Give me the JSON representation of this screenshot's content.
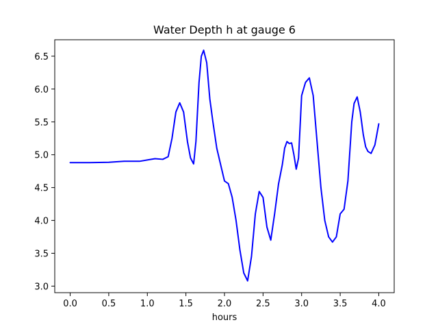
{
  "chart_data": {
    "type": "line",
    "title": "Water Depth h at gauge 6",
    "xlabel": "hours",
    "ylabel": "",
    "xlim": [
      -0.2,
      4.2
    ],
    "ylim": [
      2.9,
      6.75
    ],
    "xticks": [
      0.0,
      0.5,
      1.0,
      1.5,
      2.0,
      2.5,
      3.0,
      3.5,
      4.0
    ],
    "xtick_labels": [
      "0.0",
      "0.5",
      "1.0",
      "1.5",
      "2.0",
      "2.5",
      "3.0",
      "3.5",
      "4.0"
    ],
    "yticks": [
      3.0,
      3.5,
      4.0,
      4.5,
      5.0,
      5.5,
      6.0,
      6.5
    ],
    "ytick_labels": [
      "3.0",
      "3.5",
      "4.0",
      "4.5",
      "5.0",
      "5.5",
      "6.0",
      "6.5"
    ],
    "grid": false,
    "legend": "none",
    "series": [
      {
        "color": "#0000ff",
        "x": [
          0.0,
          0.25,
          0.5,
          0.7,
          0.9,
          1.0,
          1.1,
          1.2,
          1.27,
          1.32,
          1.37,
          1.42,
          1.47,
          1.52,
          1.56,
          1.6,
          1.63,
          1.67,
          1.7,
          1.73,
          1.77,
          1.81,
          1.85,
          1.9,
          1.95,
          2.0,
          2.05,
          2.1,
          2.15,
          2.2,
          2.25,
          2.3,
          2.35,
          2.4,
          2.45,
          2.5,
          2.55,
          2.6,
          2.65,
          2.7,
          2.75,
          2.78,
          2.81,
          2.84,
          2.87,
          2.9,
          2.93,
          2.96,
          3.0,
          3.05,
          3.1,
          3.15,
          3.2,
          3.25,
          3.3,
          3.35,
          3.4,
          3.45,
          3.5,
          3.55,
          3.6,
          3.65,
          3.68,
          3.72,
          3.76,
          3.8,
          3.83,
          3.86,
          3.9,
          3.95,
          4.0
        ],
        "y": [
          4.88,
          4.88,
          4.885,
          4.9,
          4.9,
          4.92,
          4.94,
          4.93,
          4.97,
          5.25,
          5.65,
          5.79,
          5.65,
          5.2,
          4.95,
          4.86,
          5.2,
          6.1,
          6.5,
          6.59,
          6.4,
          5.85,
          5.5,
          5.1,
          4.85,
          4.6,
          4.56,
          4.35,
          4.0,
          3.55,
          3.2,
          3.08,
          3.45,
          4.1,
          4.44,
          4.35,
          3.9,
          3.7,
          4.1,
          4.55,
          4.85,
          5.1,
          5.2,
          5.17,
          5.18,
          5.0,
          4.78,
          4.95,
          5.9,
          6.1,
          6.17,
          5.9,
          5.2,
          4.5,
          4.0,
          3.75,
          3.67,
          3.75,
          4.1,
          4.17,
          4.6,
          5.5,
          5.78,
          5.88,
          5.65,
          5.3,
          5.12,
          5.05,
          5.02,
          5.15,
          5.47
        ]
      }
    ]
  }
}
